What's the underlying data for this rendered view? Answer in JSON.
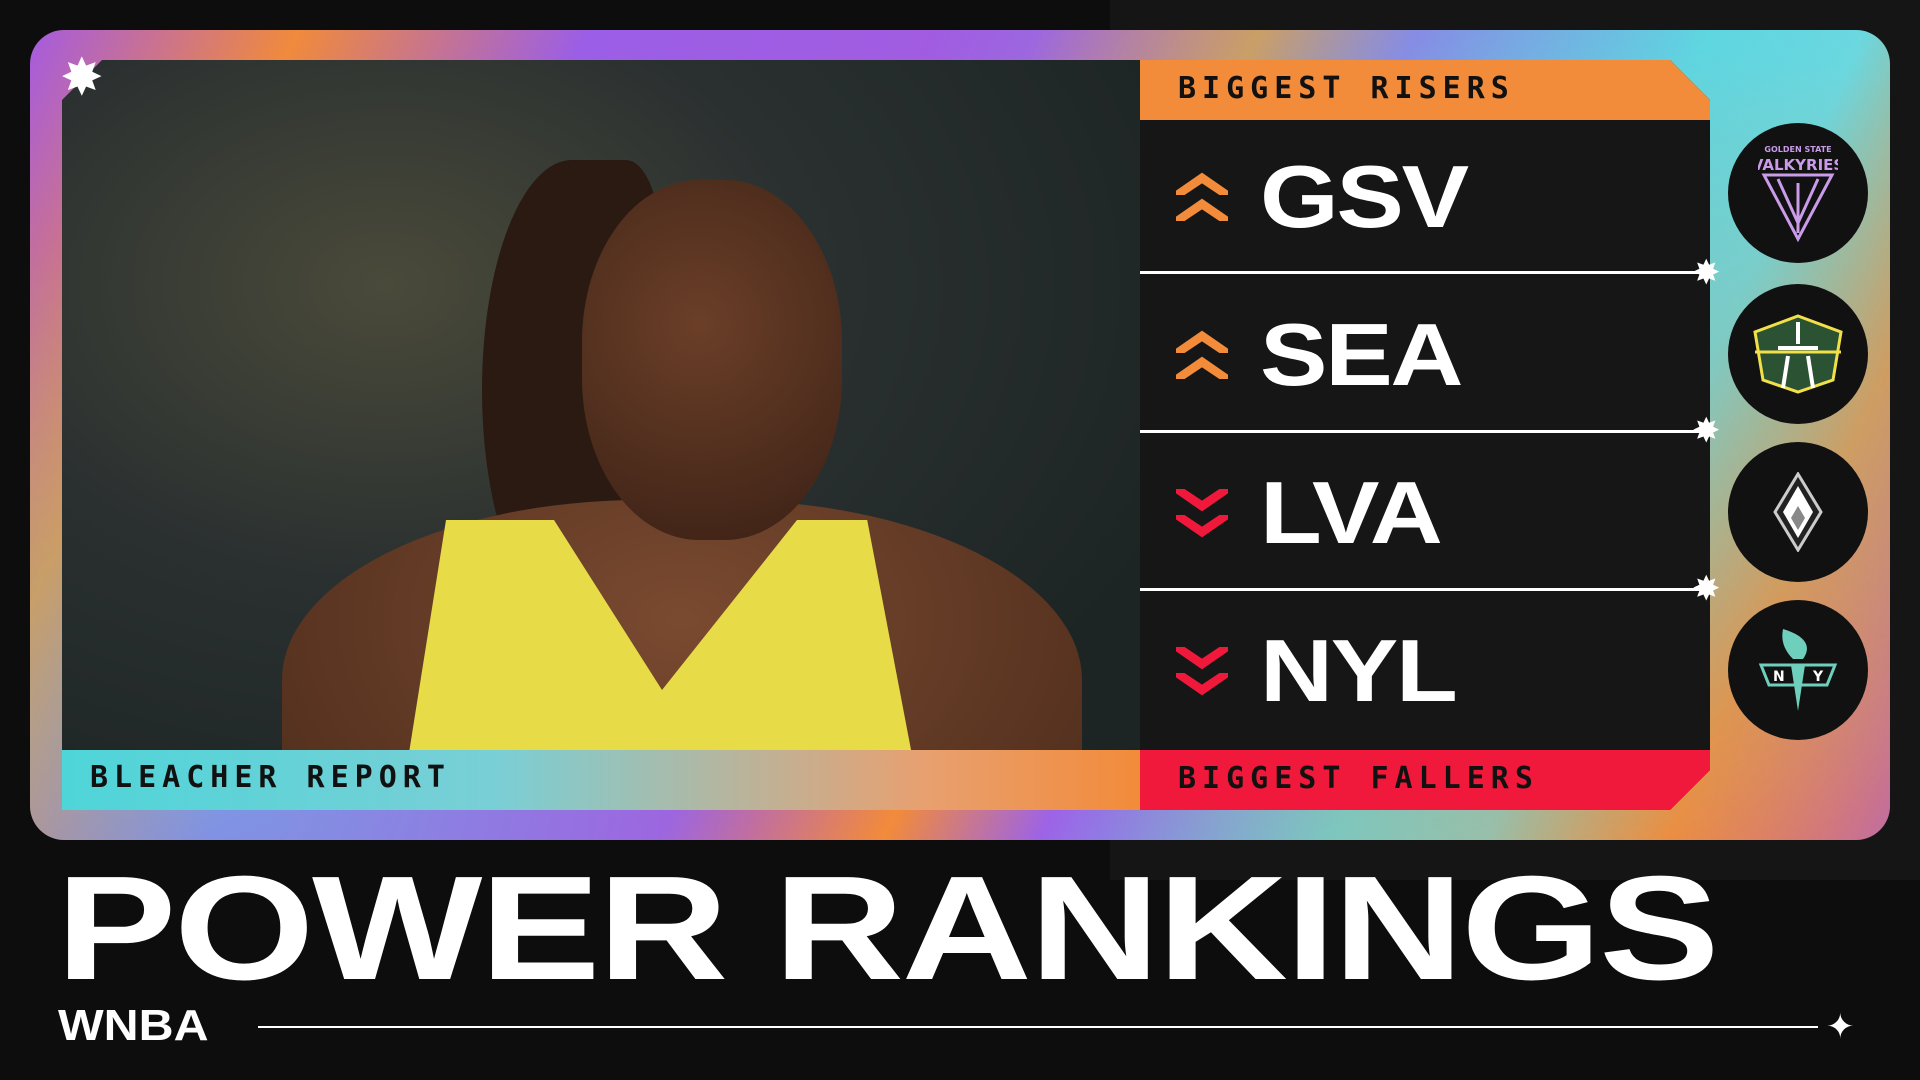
{
  "brand": "BLEACHER REPORT",
  "title": "POWER RANKINGS",
  "league": "WNBA",
  "risers_label": "BIGGEST RISERS",
  "fallers_label": "BIGGEST FALLERS",
  "teams": [
    {
      "abbr": "GSV",
      "direction": "up",
      "logo_text": "GOLDEN STATE VALKYRIES",
      "arrow_color": "#f28b3a"
    },
    {
      "abbr": "SEA",
      "direction": "up",
      "arrow_color": "#f28b3a"
    },
    {
      "abbr": "LVA",
      "direction": "down",
      "arrow_color": "#f0193b"
    },
    {
      "abbr": "NYL",
      "direction": "down",
      "arrow_color": "#f0193b"
    }
  ],
  "colors": {
    "orange": "#f28b3a",
    "red": "#f0193b",
    "teal": "#4ed5d8",
    "purple": "#a55be0"
  }
}
